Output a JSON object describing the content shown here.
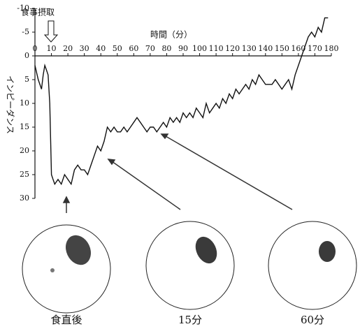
{
  "chart_data": {
    "type": "line",
    "annotation": "食事摂取",
    "x_label": "時間（分）",
    "y_label": "インピーダンス",
    "x": [
      0,
      2,
      4,
      5,
      6,
      7,
      8,
      9,
      10,
      11,
      12,
      14,
      16,
      18,
      20,
      22,
      24,
      26,
      28,
      30,
      32,
      34,
      36,
      38,
      40,
      42,
      44,
      46,
      48,
      50,
      52,
      54,
      56,
      58,
      60,
      62,
      64,
      66,
      68,
      70,
      72,
      74,
      76,
      78,
      80,
      82,
      84,
      86,
      88,
      90,
      92,
      94,
      96,
      98,
      100,
      102,
      104,
      106,
      108,
      110,
      112,
      114,
      116,
      118,
      120,
      122,
      124,
      126,
      128,
      130,
      132,
      134,
      136,
      138,
      140,
      142,
      144,
      146,
      148,
      150,
      152,
      154,
      156,
      158,
      160,
      162,
      164,
      166,
      168,
      170,
      172,
      174,
      176,
      178
    ],
    "values": [
      2,
      5,
      7,
      4,
      2,
      3,
      4,
      10,
      25,
      26,
      27,
      26,
      27,
      25,
      26,
      27,
      24,
      23,
      24,
      24,
      25,
      23,
      21,
      19,
      20,
      18,
      15,
      16,
      15,
      16,
      16,
      15,
      16,
      15,
      14,
      13,
      14,
      15,
      16,
      15,
      15,
      16,
      15,
      14,
      15,
      13,
      14,
      13,
      14,
      12,
      13,
      12,
      13,
      11,
      12,
      13,
      10,
      12,
      11,
      10,
      11,
      9,
      10,
      8,
      9,
      7,
      8,
      7,
      6,
      7,
      5,
      6,
      4,
      5,
      6,
      6,
      6,
      5,
      6,
      7,
      6,
      5,
      7,
      4,
      2,
      0,
      -2,
      -4,
      -5,
      -4,
      -6,
      -5,
      -8,
      -8
    ],
    "color": "#111111",
    "xlim": [
      0,
      180
    ],
    "xticks": [
      0,
      10,
      20,
      30,
      40,
      50,
      60,
      70,
      80,
      90,
      100,
      110,
      120,
      130,
      140,
      150,
      160,
      170,
      180
    ],
    "ylim": [
      -10,
      30
    ],
    "yticks": [
      -10,
      -5,
      0,
      5,
      10,
      15,
      20,
      25,
      30
    ],
    "y_reversed": true,
    "panels": [
      "食直後",
      "15分",
      "60分"
    ]
  }
}
